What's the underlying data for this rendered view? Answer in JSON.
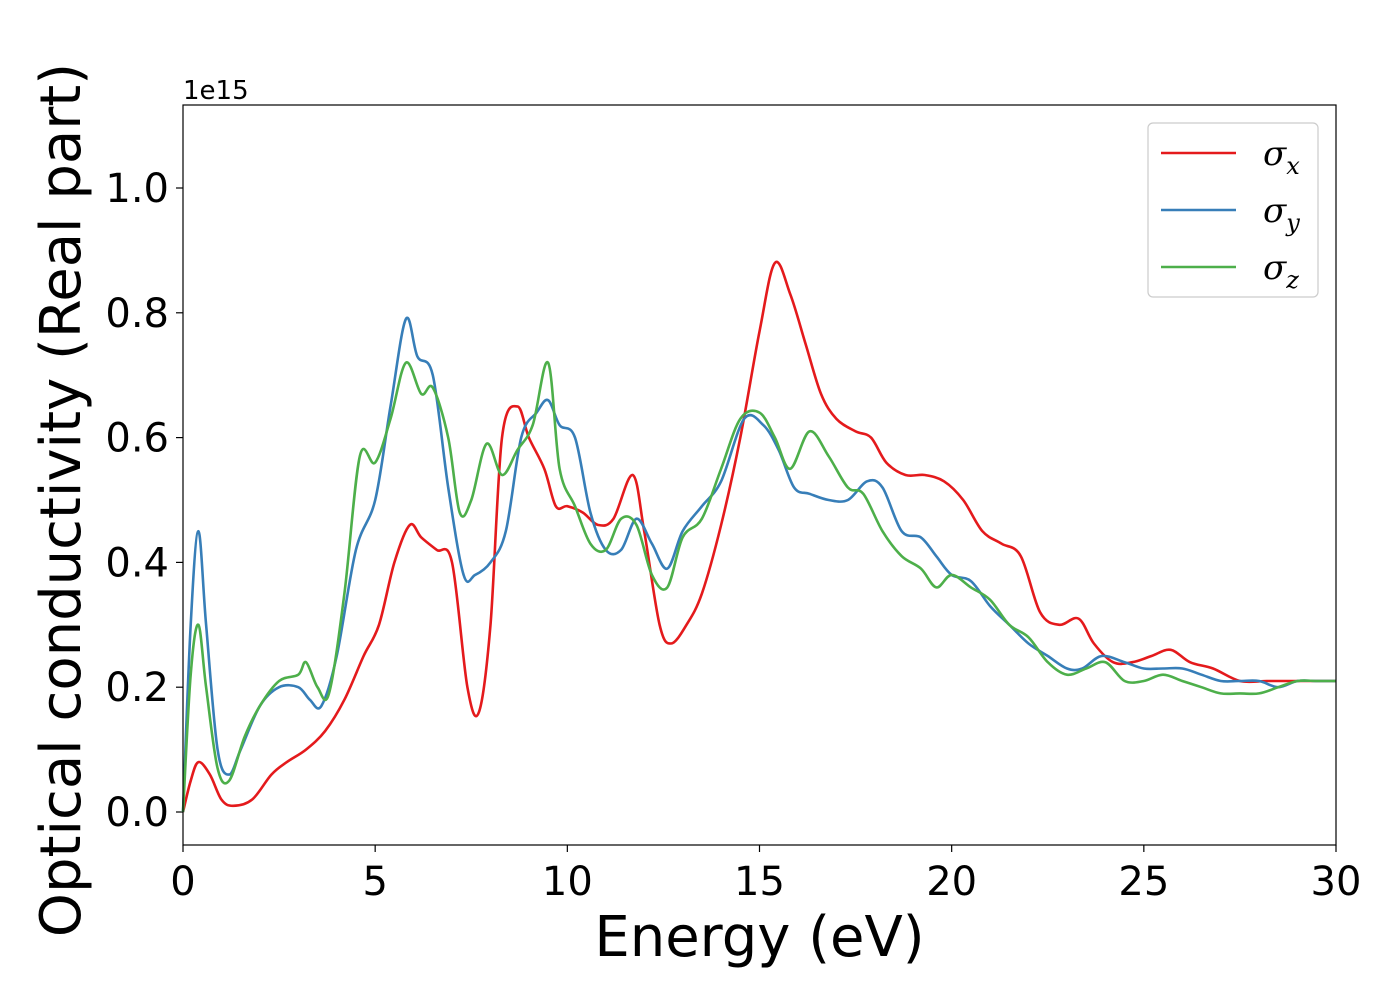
{
  "chart_data": {
    "type": "line",
    "xlabel": "Energy (eV)",
    "ylabel": "Optical conductivity (Real part)",
    "y_offset_label": "1e15",
    "xlim": [
      0,
      30
    ],
    "ylim": [
      -0.05,
      1.13
    ],
    "x_ticks": [
      0,
      5,
      10,
      15,
      20,
      25,
      30
    ],
    "x_tick_labels": [
      "0",
      "5",
      "10",
      "15",
      "20",
      "25",
      "30"
    ],
    "y_ticks": [
      0.0,
      0.2,
      0.4,
      0.6,
      0.8,
      1.0
    ],
    "y_tick_labels": [
      "0.0",
      "0.2",
      "0.4",
      "0.6",
      "0.8",
      "1.0"
    ],
    "grid": false,
    "legend_position": "top-right",
    "series": [
      {
        "name": "σx",
        "symbol": "σ",
        "subscript": "x",
        "color": "#e41a1c",
        "x": [
          0,
          0.2,
          0.4,
          0.7,
          1.0,
          1.3,
          1.8,
          2.3,
          2.7,
          3.2,
          3.7,
          4.2,
          4.7,
          5.1,
          5.5,
          5.9,
          6.2,
          6.6,
          7.0,
          7.4,
          7.7,
          8.0,
          8.3,
          8.7,
          9.0,
          9.4,
          9.7,
          10.0,
          10.4,
          10.8,
          11.2,
          11.7,
          12.0,
          12.4,
          12.7,
          13.1,
          13.5,
          14.0,
          14.5,
          15.0,
          15.4,
          15.8,
          16.2,
          16.6,
          17.0,
          17.5,
          17.9,
          18.3,
          18.8,
          19.3,
          19.8,
          20.3,
          20.8,
          21.3,
          21.8,
          22.3,
          22.8,
          23.3,
          23.7,
          24.2,
          24.7,
          25.2,
          25.7,
          26.2,
          26.8,
          27.5,
          28.2,
          28.8,
          29.3,
          30.0
        ],
        "values": [
          0.0,
          0.05,
          0.08,
          0.06,
          0.02,
          0.01,
          0.02,
          0.06,
          0.08,
          0.1,
          0.13,
          0.18,
          0.25,
          0.3,
          0.4,
          0.46,
          0.44,
          0.42,
          0.4,
          0.2,
          0.16,
          0.3,
          0.6,
          0.65,
          0.6,
          0.55,
          0.49,
          0.49,
          0.48,
          0.46,
          0.47,
          0.54,
          0.45,
          0.3,
          0.27,
          0.3,
          0.35,
          0.46,
          0.6,
          0.77,
          0.88,
          0.83,
          0.75,
          0.67,
          0.63,
          0.61,
          0.6,
          0.56,
          0.54,
          0.54,
          0.53,
          0.5,
          0.45,
          0.43,
          0.41,
          0.32,
          0.3,
          0.31,
          0.27,
          0.24,
          0.24,
          0.25,
          0.26,
          0.24,
          0.23,
          0.21,
          0.21,
          0.21,
          0.21,
          0.21
        ]
      },
      {
        "name": "σy",
        "symbol": "σ",
        "subscript": "y",
        "color": "#377eb8",
        "x": [
          0,
          0.2,
          0.4,
          0.6,
          0.9,
          1.2,
          1.5,
          2.0,
          2.5,
          3.0,
          3.3,
          3.6,
          4.0,
          4.5,
          5.0,
          5.4,
          5.8,
          6.1,
          6.5,
          6.9,
          7.3,
          7.6,
          8.0,
          8.4,
          8.8,
          9.2,
          9.5,
          9.8,
          10.2,
          10.6,
          11.0,
          11.4,
          11.8,
          12.2,
          12.6,
          13.0,
          13.5,
          14.0,
          14.6,
          15.1,
          15.5,
          15.9,
          16.3,
          16.8,
          17.3,
          17.8,
          18.2,
          18.7,
          19.2,
          19.6,
          20.0,
          20.5,
          21.0,
          21.5,
          22.0,
          22.5,
          23.0,
          23.4,
          23.9,
          24.5,
          25.0,
          25.5,
          26.0,
          26.5,
          27.0,
          27.5,
          28.0,
          28.5,
          29.0,
          29.5,
          30.0
        ],
        "values": [
          0.0,
          0.3,
          0.45,
          0.3,
          0.1,
          0.06,
          0.1,
          0.17,
          0.2,
          0.2,
          0.18,
          0.17,
          0.25,
          0.42,
          0.5,
          0.65,
          0.79,
          0.73,
          0.7,
          0.52,
          0.38,
          0.38,
          0.4,
          0.45,
          0.6,
          0.64,
          0.66,
          0.62,
          0.6,
          0.48,
          0.42,
          0.42,
          0.47,
          0.43,
          0.39,
          0.45,
          0.49,
          0.53,
          0.63,
          0.62,
          0.58,
          0.52,
          0.51,
          0.5,
          0.5,
          0.53,
          0.52,
          0.45,
          0.44,
          0.41,
          0.38,
          0.37,
          0.33,
          0.3,
          0.27,
          0.25,
          0.23,
          0.23,
          0.25,
          0.24,
          0.23,
          0.23,
          0.23,
          0.22,
          0.21,
          0.21,
          0.21,
          0.2,
          0.21,
          0.21,
          0.21
        ]
      },
      {
        "name": "σz",
        "symbol": "σ",
        "subscript": "z",
        "color": "#4daf4a",
        "x": [
          0,
          0.2,
          0.4,
          0.6,
          0.9,
          1.2,
          1.6,
          2.0,
          2.5,
          3.0,
          3.2,
          3.5,
          3.8,
          4.2,
          4.6,
          5.0,
          5.4,
          5.8,
          6.2,
          6.5,
          6.9,
          7.2,
          7.5,
          7.9,
          8.3,
          8.7,
          9.1,
          9.5,
          9.8,
          10.2,
          10.6,
          11.0,
          11.4,
          11.8,
          12.2,
          12.6,
          13.0,
          13.5,
          14.0,
          14.5,
          15.0,
          15.4,
          15.8,
          16.3,
          16.8,
          17.3,
          17.7,
          18.2,
          18.7,
          19.2,
          19.6,
          20.0,
          20.5,
          21.0,
          21.5,
          22.0,
          22.5,
          23.0,
          23.5,
          24.0,
          24.5,
          25.0,
          25.5,
          26.0,
          26.5,
          27.0,
          27.5,
          28.0,
          28.5,
          29.0,
          29.5,
          30.0
        ],
        "values": [
          0.0,
          0.22,
          0.3,
          0.2,
          0.07,
          0.05,
          0.12,
          0.17,
          0.21,
          0.22,
          0.24,
          0.2,
          0.19,
          0.35,
          0.57,
          0.56,
          0.63,
          0.72,
          0.67,
          0.68,
          0.6,
          0.48,
          0.5,
          0.59,
          0.54,
          0.58,
          0.62,
          0.72,
          0.55,
          0.49,
          0.43,
          0.42,
          0.47,
          0.46,
          0.38,
          0.36,
          0.44,
          0.47,
          0.55,
          0.63,
          0.64,
          0.6,
          0.55,
          0.61,
          0.57,
          0.52,
          0.51,
          0.45,
          0.41,
          0.39,
          0.36,
          0.38,
          0.36,
          0.34,
          0.3,
          0.28,
          0.24,
          0.22,
          0.23,
          0.24,
          0.21,
          0.21,
          0.22,
          0.21,
          0.2,
          0.19,
          0.19,
          0.19,
          0.2,
          0.21,
          0.21,
          0.21
        ]
      }
    ]
  }
}
